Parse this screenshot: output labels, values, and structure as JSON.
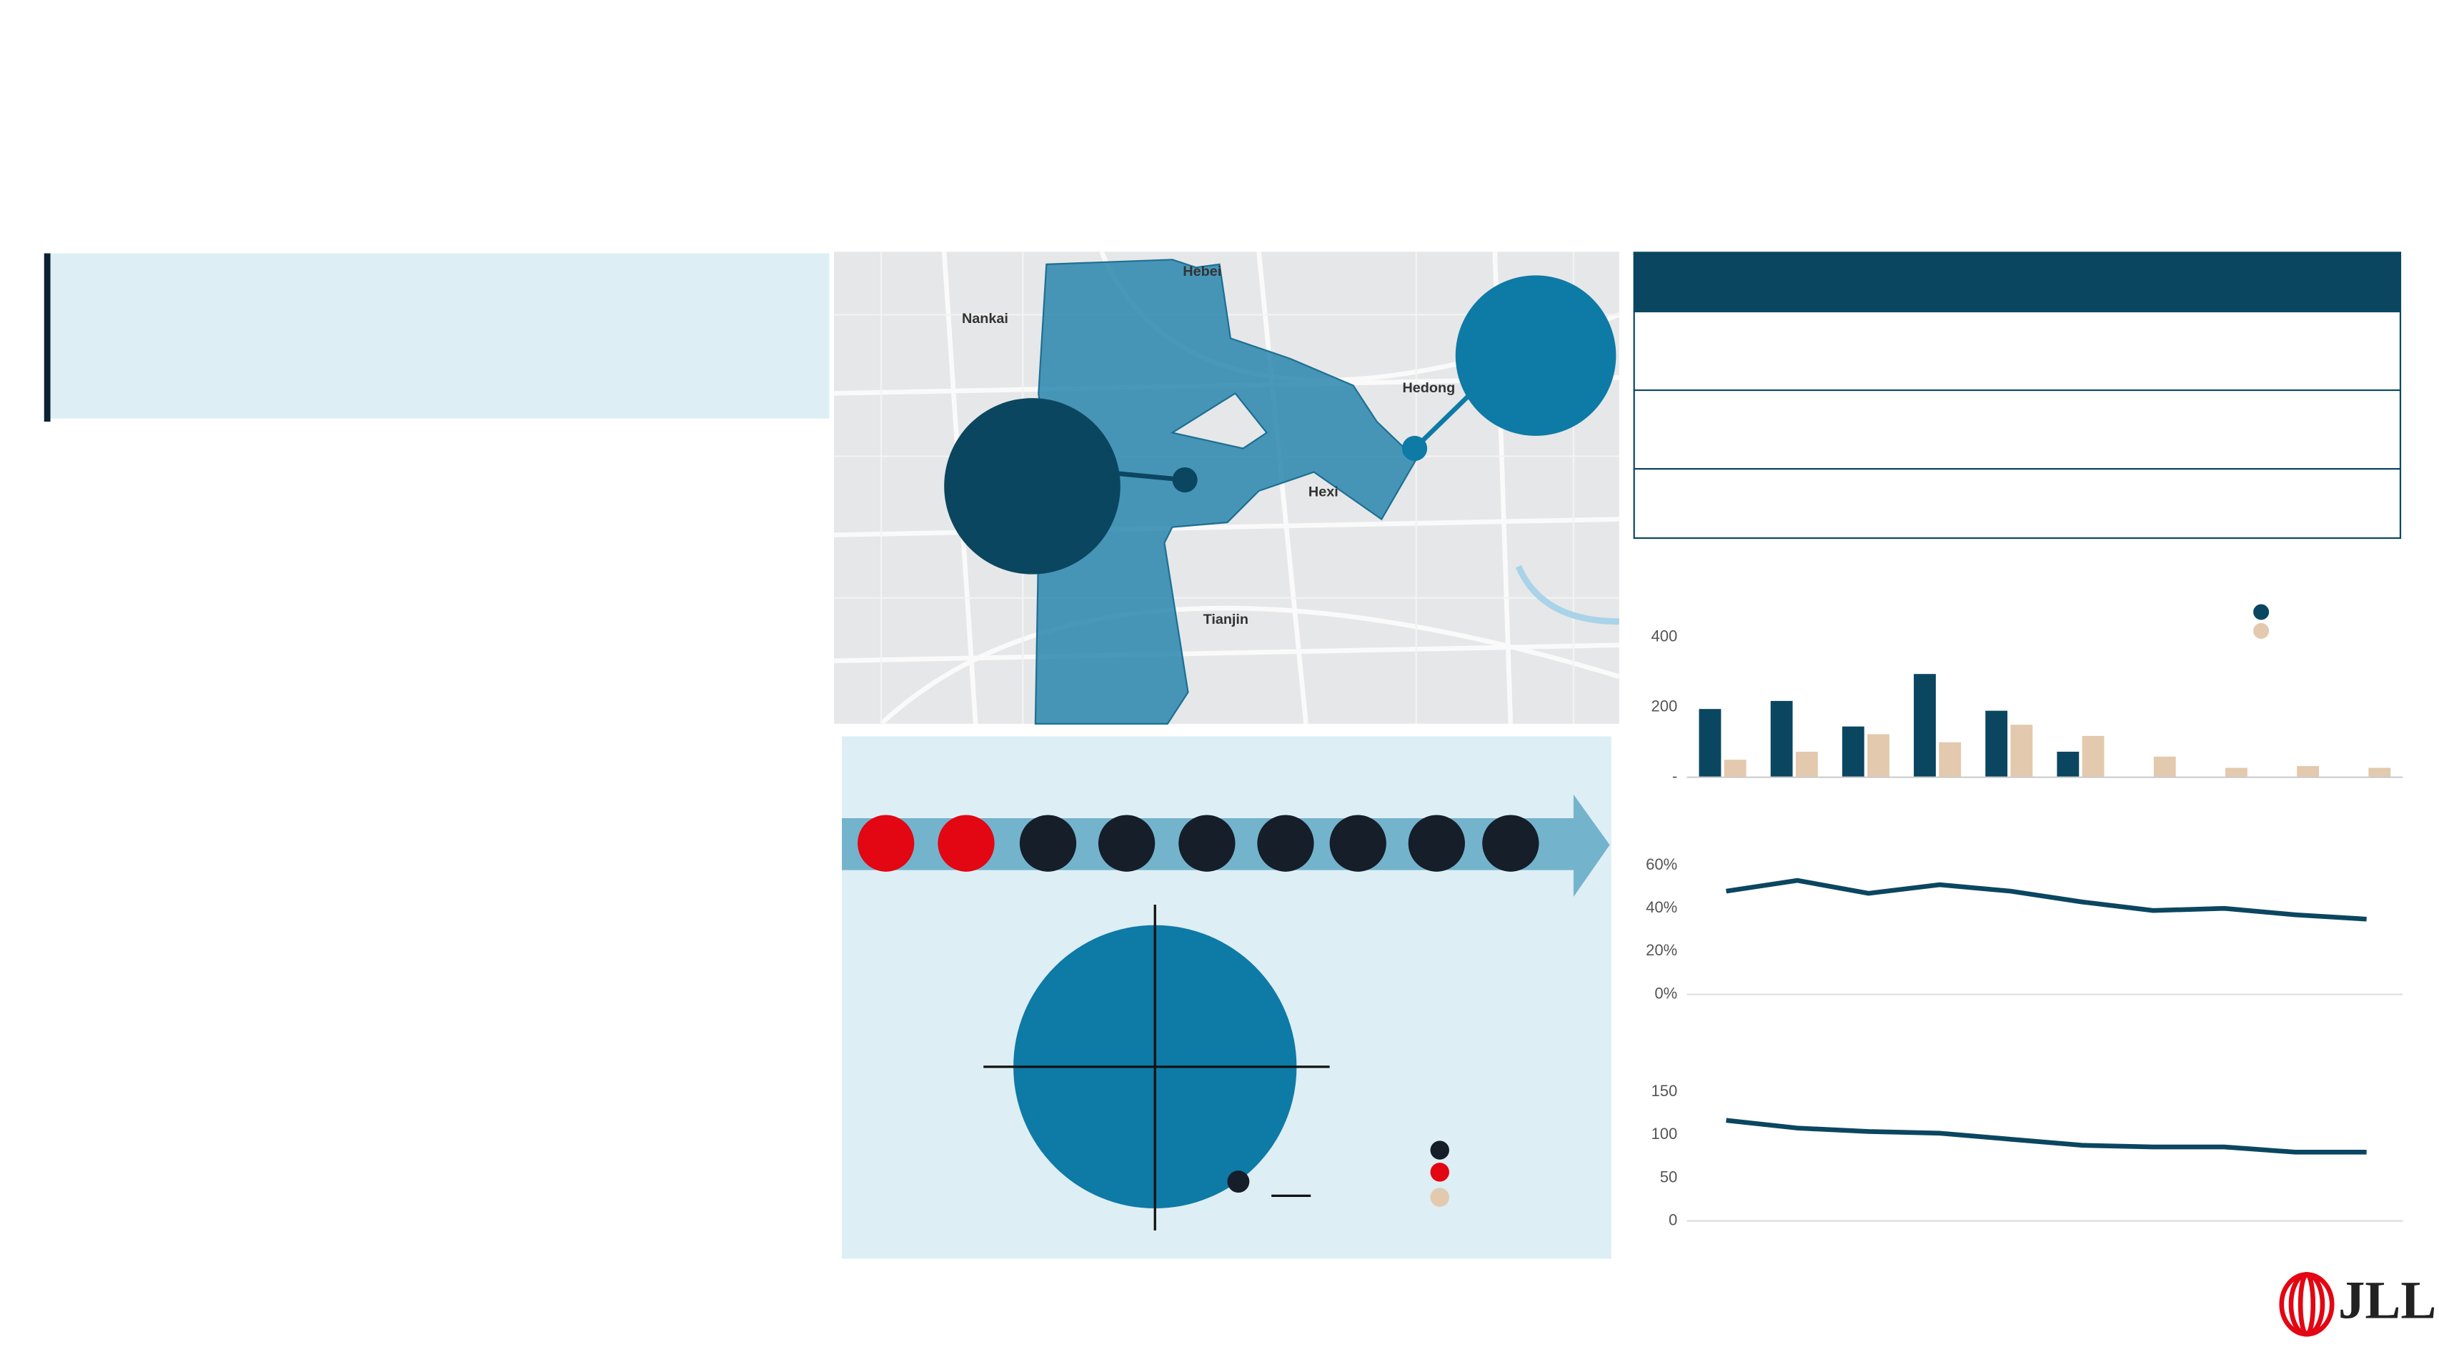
{
  "map": {
    "labels": [
      "Nankai",
      "Hebei",
      "Hedong",
      "Hexi",
      "Tianjin"
    ]
  },
  "chart_data": [
    {
      "type": "bar",
      "categories": [
        null,
        null,
        null,
        null,
        null,
        null,
        null,
        null,
        null,
        null
      ],
      "series": [
        {
          "color": "#0b4660",
          "values": [
            195,
            218,
            145,
            295,
            190,
            73,
            null,
            null,
            null,
            null
          ]
        },
        {
          "color": "#e3c9ad",
          "values": [
            50,
            73,
            123,
            100,
            150,
            118,
            59,
            27,
            32,
            27
          ]
        }
      ],
      "ylim": [
        0,
        400
      ],
      "yticks": [
        {
          "value": 0,
          "label": "-"
        },
        200,
        400
      ]
    },
    {
      "type": "line",
      "categories": [
        null,
        null,
        null,
        null,
        null,
        null,
        null,
        null,
        null,
        null
      ],
      "series": [
        {
          "color": "#0b4660",
          "values": [
            48,
            53,
            47,
            51,
            48,
            43,
            39,
            40,
            37,
            35
          ]
        }
      ],
      "ylim": [
        0,
        60
      ],
      "yticks": [
        {
          "value": 0,
          "label": "0%"
        },
        {
          "value": 20,
          "label": "20%"
        },
        {
          "value": 40,
          "label": "40%"
        },
        {
          "value": 60,
          "label": "60%"
        }
      ]
    },
    {
      "type": "line",
      "categories": [
        null,
        null,
        null,
        null,
        null,
        null,
        null,
        null,
        null,
        null
      ],
      "series": [
        {
          "color": "#0b4660",
          "values": [
            117,
            108,
            104,
            102,
            95,
            88,
            86,
            86,
            80,
            80
          ]
        }
      ],
      "ylim": [
        0,
        150
      ],
      "yticks": [
        0,
        50,
        100,
        150
      ]
    }
  ],
  "logo": "JLL"
}
